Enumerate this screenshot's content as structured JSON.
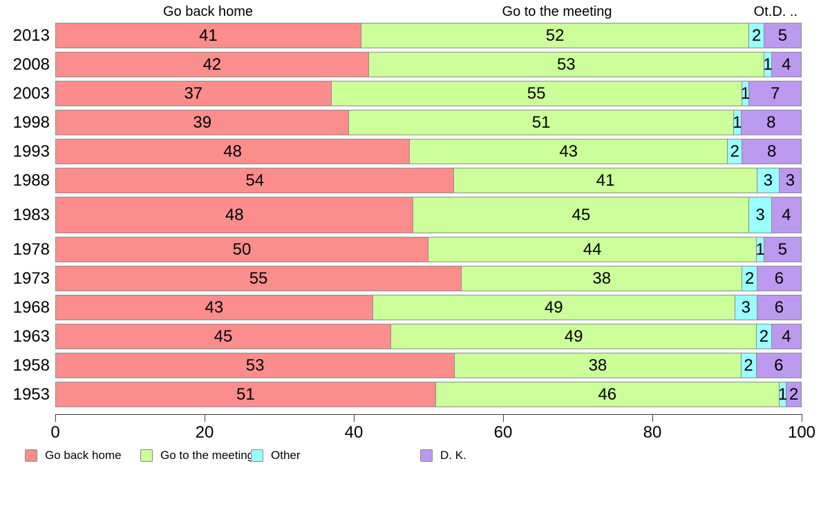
{
  "chart_data": {
    "type": "bar",
    "orientation": "horizontal",
    "stacked": true,
    "normalized_to_100": true,
    "grid": false,
    "legend_position": "bottom",
    "title": "",
    "xlabel": "",
    "ylabel": "",
    "xlim": [
      0,
      100
    ],
    "x_ticks": [
      0,
      20,
      40,
      60,
      80,
      100
    ],
    "headers": {
      "left": "Go back home",
      "middle": "Go to the meeting",
      "right": "Ot.D. .."
    },
    "categories": [
      "2013",
      "2008",
      "2003",
      "1998",
      "1993",
      "1988",
      "1983",
      "1978",
      "1973",
      "1968",
      "1963",
      "1958",
      "1953"
    ],
    "series": [
      {
        "name": "Go back home",
        "color": "#FC8D8D",
        "values": [
          41,
          42,
          37,
          39,
          48,
          54,
          48,
          50,
          55,
          43,
          45,
          53,
          51
        ]
      },
      {
        "name": "Go to the meeting",
        "color": "#CCFF99",
        "values": [
          52,
          53,
          55,
          51,
          43,
          41,
          45,
          44,
          38,
          49,
          49,
          38,
          46
        ]
      },
      {
        "name": "Other",
        "color": "#99FFFF",
        "values": [
          2,
          1,
          1,
          1,
          2,
          3,
          3,
          1,
          2,
          3,
          2,
          2,
          1
        ]
      },
      {
        "name": "D. K.",
        "color": "#BB99EE",
        "values": [
          5,
          4,
          7,
          8,
          8,
          3,
          4,
          5,
          6,
          6,
          4,
          6,
          2
        ]
      }
    ],
    "legend_labels": [
      "Go back home",
      "Go to the meeting",
      "Other",
      "D. K."
    ],
    "axis_color": "#3c3c3c",
    "segment_border_color": "#8d8d8d"
  }
}
